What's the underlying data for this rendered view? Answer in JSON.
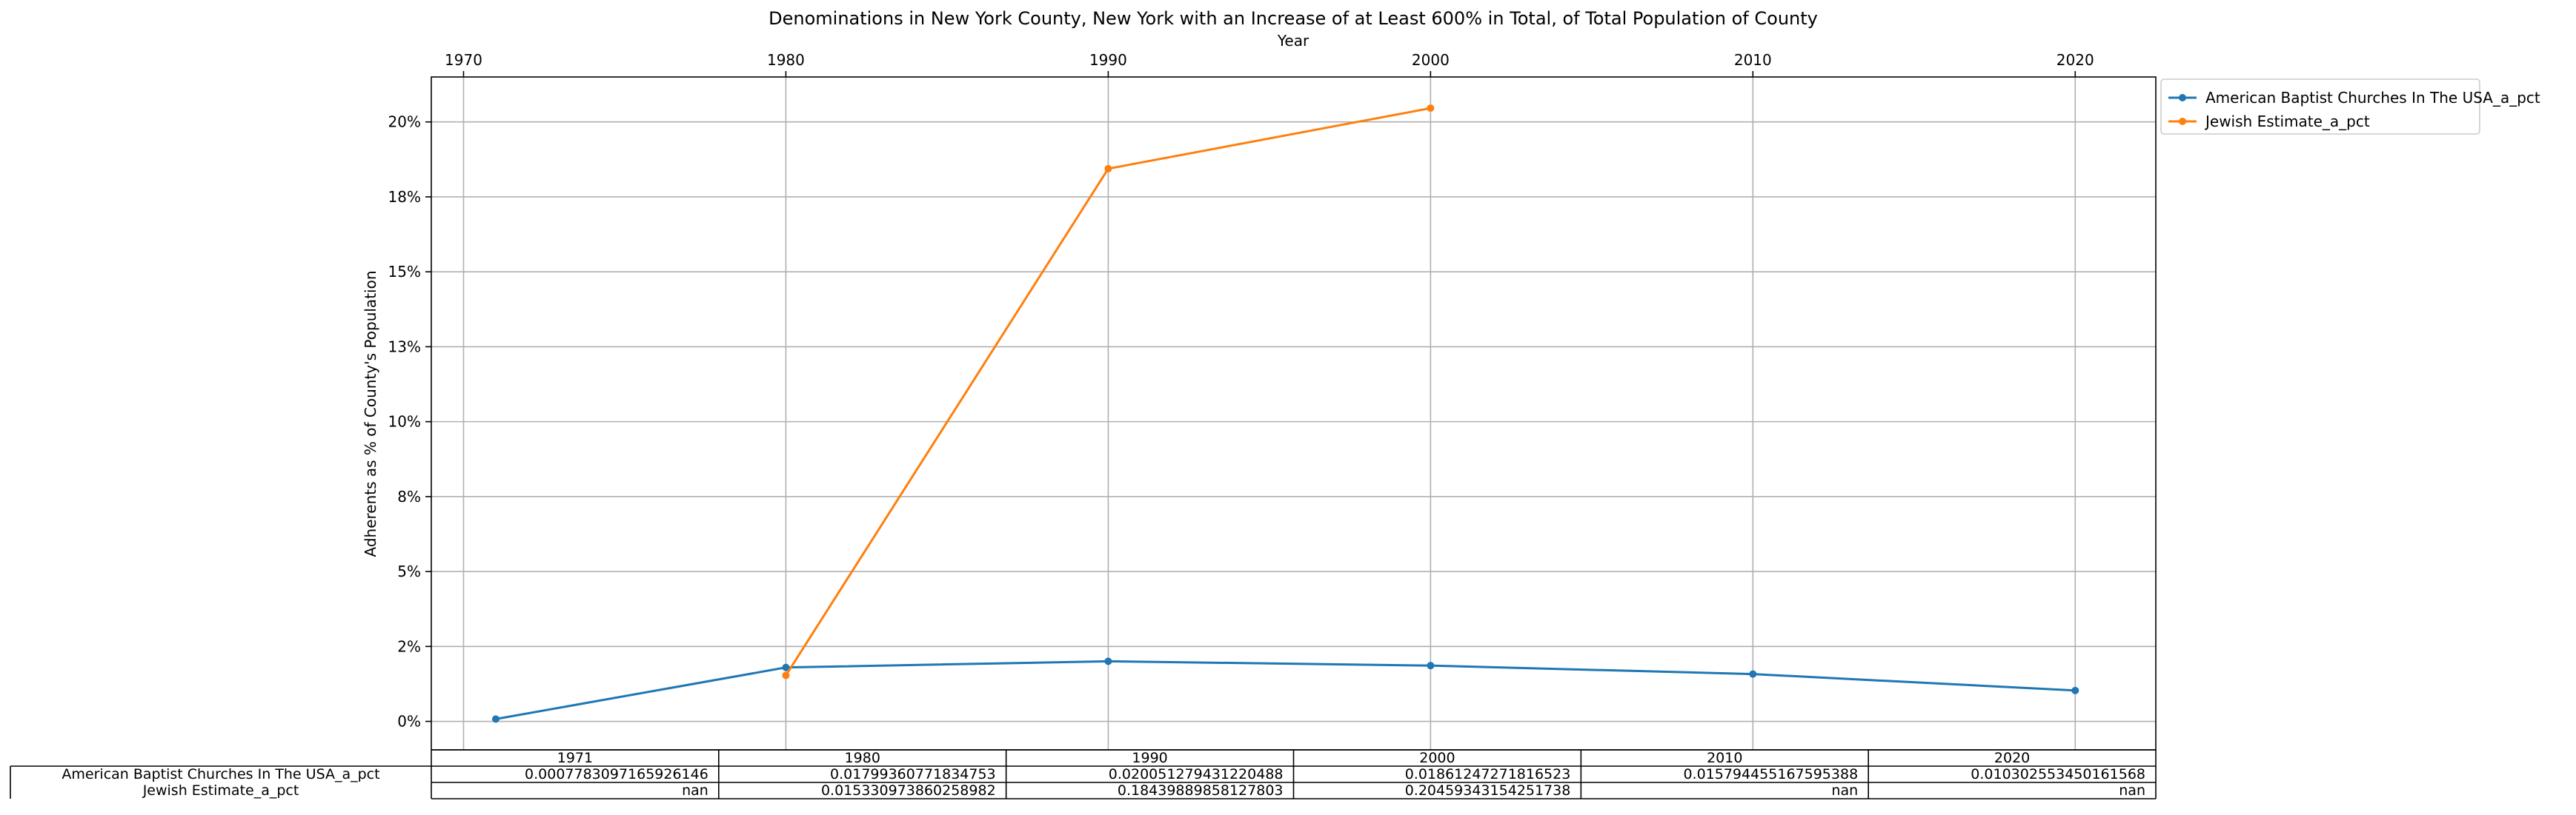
{
  "chart_data": {
    "type": "line",
    "title": "Denominations in New York County, New York with an Increase of at Least 600% in Total, of Total Population of County",
    "xlabel": "Year",
    "ylabel": "Adherents as % of County's Population",
    "x_ticks": [
      1970,
      1980,
      1990,
      2000,
      2010,
      2020
    ],
    "xlim": [
      1969,
      2022.5
    ],
    "y_ticks": [
      0,
      0.025,
      0.05,
      0.075,
      0.1,
      0.125,
      0.15,
      0.175,
      0.2
    ],
    "y_tick_labels": [
      "0%",
      "2%",
      "5%",
      "8%",
      "10%",
      "13%",
      "15%",
      "18%",
      "20%"
    ],
    "ylim": [
      -0.0095,
      0.215
    ],
    "grid": true,
    "legend_position": "outside-top-right",
    "series": [
      {
        "name": "American Baptist Churches In The USA_a_pct",
        "color": "#1f77b4",
        "x": [
          1971,
          1980,
          1990,
          2000,
          2010,
          2020
        ],
        "y": [
          0.0007783097165926146,
          0.01799360771834753,
          0.020051279431220488,
          0.01861247271816523,
          0.015794455167595388,
          0.010302553450161568
        ]
      },
      {
        "name": "Jewish Estimate_a_pct",
        "color": "#ff7f0e",
        "x": [
          1980,
          1990,
          2000
        ],
        "y": [
          0.015330973860258982,
          0.18439889858127803,
          0.20459343154251738
        ]
      }
    ],
    "table": {
      "columns": [
        "1971",
        "1980",
        "1990",
        "2000",
        "2010",
        "2020"
      ],
      "rows": [
        {
          "label": "American Baptist Churches In The USA_a_pct",
          "cells": [
            "0.0007783097165926146",
            "0.01799360771834753",
            "0.020051279431220488",
            "0.01861247271816523",
            "0.015794455167595388",
            "0.010302553450161568"
          ]
        },
        {
          "label": "Jewish Estimate_a_pct",
          "cells": [
            "nan",
            "0.015330973860258982",
            "0.18439889858127803",
            "0.20459343154251738",
            "nan",
            "nan"
          ]
        }
      ]
    }
  }
}
